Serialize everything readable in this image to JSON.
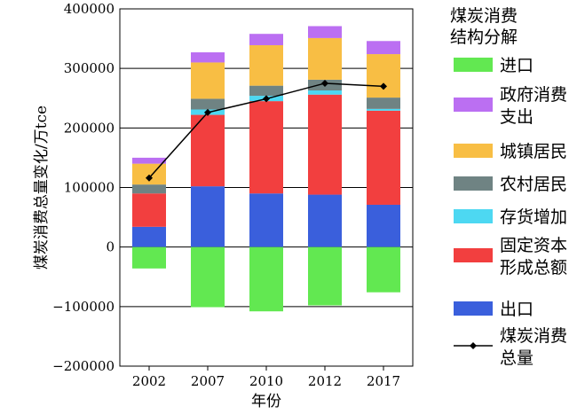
{
  "chart_data": {
    "type": "bar",
    "stacked": true,
    "categories": [
      "2002",
      "2007",
      "2010",
      "2012",
      "2017"
    ],
    "xlabel": "年份",
    "ylabel": "煤炭消费总量变化/万tce",
    "ylim": [
      -200000,
      400000
    ],
    "yticks": [
      -200000,
      -100000,
      0,
      100000,
      200000,
      300000,
      400000
    ],
    "ytick_labels": [
      "−200000",
      "−100000",
      "0",
      "100000",
      "200000",
      "300000",
      "400000"
    ],
    "grid": true,
    "legend_title": [
      "煤炭消费",
      "结构分解"
    ],
    "legend_position": "right",
    "series": [
      {
        "name": "出口",
        "color": "#3a5fdc",
        "values": [
          34000,
          102000,
          90000,
          88000,
          71000
        ]
      },
      {
        "name": "固定资本形成总额",
        "color": "#f23f3f",
        "values": [
          56000,
          120000,
          155000,
          168000,
          158000
        ]
      },
      {
        "name": "存货增加",
        "color": "#4dd8f2",
        "values": [
          0,
          9000,
          9000,
          7000,
          3000
        ]
      },
      {
        "name": "农村居民",
        "color": "#6f8383",
        "values": [
          15000,
          18000,
          17000,
          18000,
          19000
        ]
      },
      {
        "name": "城镇居民",
        "color": "#f8be44",
        "values": [
          35000,
          61000,
          68000,
          70000,
          73000
        ]
      },
      {
        "name": "政府消费支出",
        "color": "#bb6ff2",
        "values": [
          10000,
          17000,
          19000,
          20000,
          22000
        ]
      },
      {
        "name": "进口",
        "color": "#62e851",
        "values": [
          -36000,
          -101000,
          -108000,
          -98000,
          -76000
        ]
      }
    ],
    "line": {
      "name": "煤炭消费总量",
      "color": "#000000",
      "values": [
        116000,
        226000,
        249000,
        275000,
        270000
      ]
    },
    "legend_order": [
      "进口",
      "政府消费支出",
      "城镇居民",
      "农村居民",
      "存货增加",
      "固定资本形成总额",
      "出口",
      "煤炭消费总量"
    ],
    "legend_labels": [
      [
        "进口"
      ],
      [
        "政府消费",
        "支出"
      ],
      [
        "城镇居民"
      ],
      [
        "农村居民"
      ],
      [
        "存货增加"
      ],
      [
        "固定资本",
        "形成总额"
      ],
      [
        "出口"
      ],
      [
        "煤炭消费",
        "总量"
      ]
    ]
  }
}
